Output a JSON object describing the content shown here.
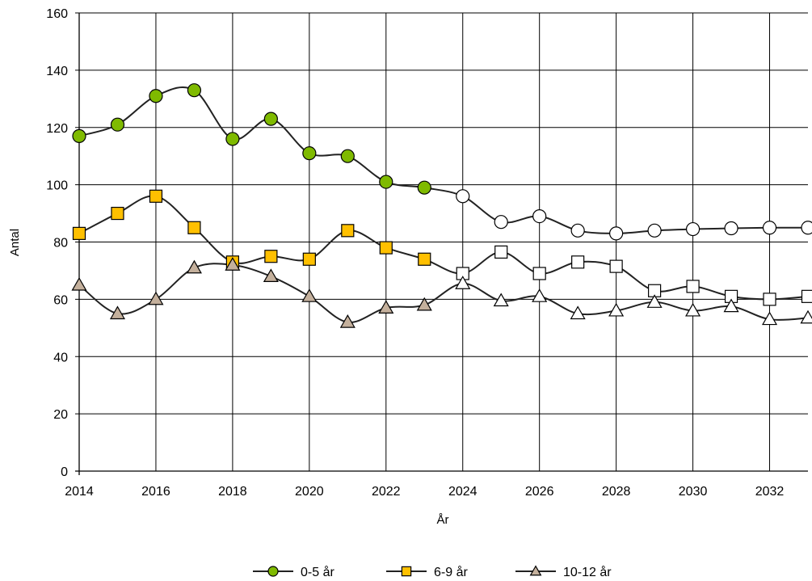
{
  "chart_data": {
    "type": "line",
    "title": "",
    "xlabel": "År",
    "ylabel": "Antal",
    "xlim": [
      2014,
      2033
    ],
    "ylim": [
      0,
      160
    ],
    "x_ticks": [
      2014,
      2016,
      2018,
      2020,
      2022,
      2024,
      2026,
      2028,
      2030,
      2032
    ],
    "x_tick_labels": [
      "2014",
      "2016",
      "2018",
      "2020",
      "2022",
      "2024",
      "2026",
      "2028",
      "2030",
      "2032"
    ],
    "y_ticks": [
      0,
      20,
      40,
      60,
      80,
      100,
      120,
      140,
      160
    ],
    "y_tick_labels": [
      "0",
      "20",
      "40",
      "60",
      "80",
      "100",
      "120",
      "140",
      "160"
    ],
    "grid": true,
    "smooth": true,
    "forecast_from": 2024,
    "legend_position": "bottom",
    "x": [
      2014,
      2015,
      2016,
      2017,
      2018,
      2019,
      2020,
      2021,
      2022,
      2023,
      2024,
      2025,
      2026,
      2027,
      2028,
      2029,
      2030,
      2031,
      2032,
      2033
    ],
    "series": [
      {
        "name": "0-5 år",
        "marker": "circle",
        "color": "#7fba00",
        "values": [
          117,
          121,
          131,
          133,
          116,
          123,
          111,
          110,
          101,
          99,
          96,
          87,
          89,
          84,
          83,
          84,
          84.5,
          84.8,
          85,
          85
        ]
      },
      {
        "name": "6-9 år",
        "marker": "square",
        "color": "#ffc000",
        "values": [
          83,
          90,
          96,
          85,
          73,
          75,
          74,
          84,
          78,
          74,
          69,
          76.5,
          69,
          73,
          71.5,
          63,
          64.5,
          61,
          60,
          61
        ]
      },
      {
        "name": "10-12 år",
        "marker": "triangle",
        "color": "#c4b09c",
        "values": [
          65,
          55,
          60,
          71,
          72,
          68,
          61,
          52,
          57,
          58,
          65.5,
          59.5,
          61,
          55,
          56,
          59,
          56,
          57.5,
          53,
          53.5
        ]
      }
    ]
  }
}
